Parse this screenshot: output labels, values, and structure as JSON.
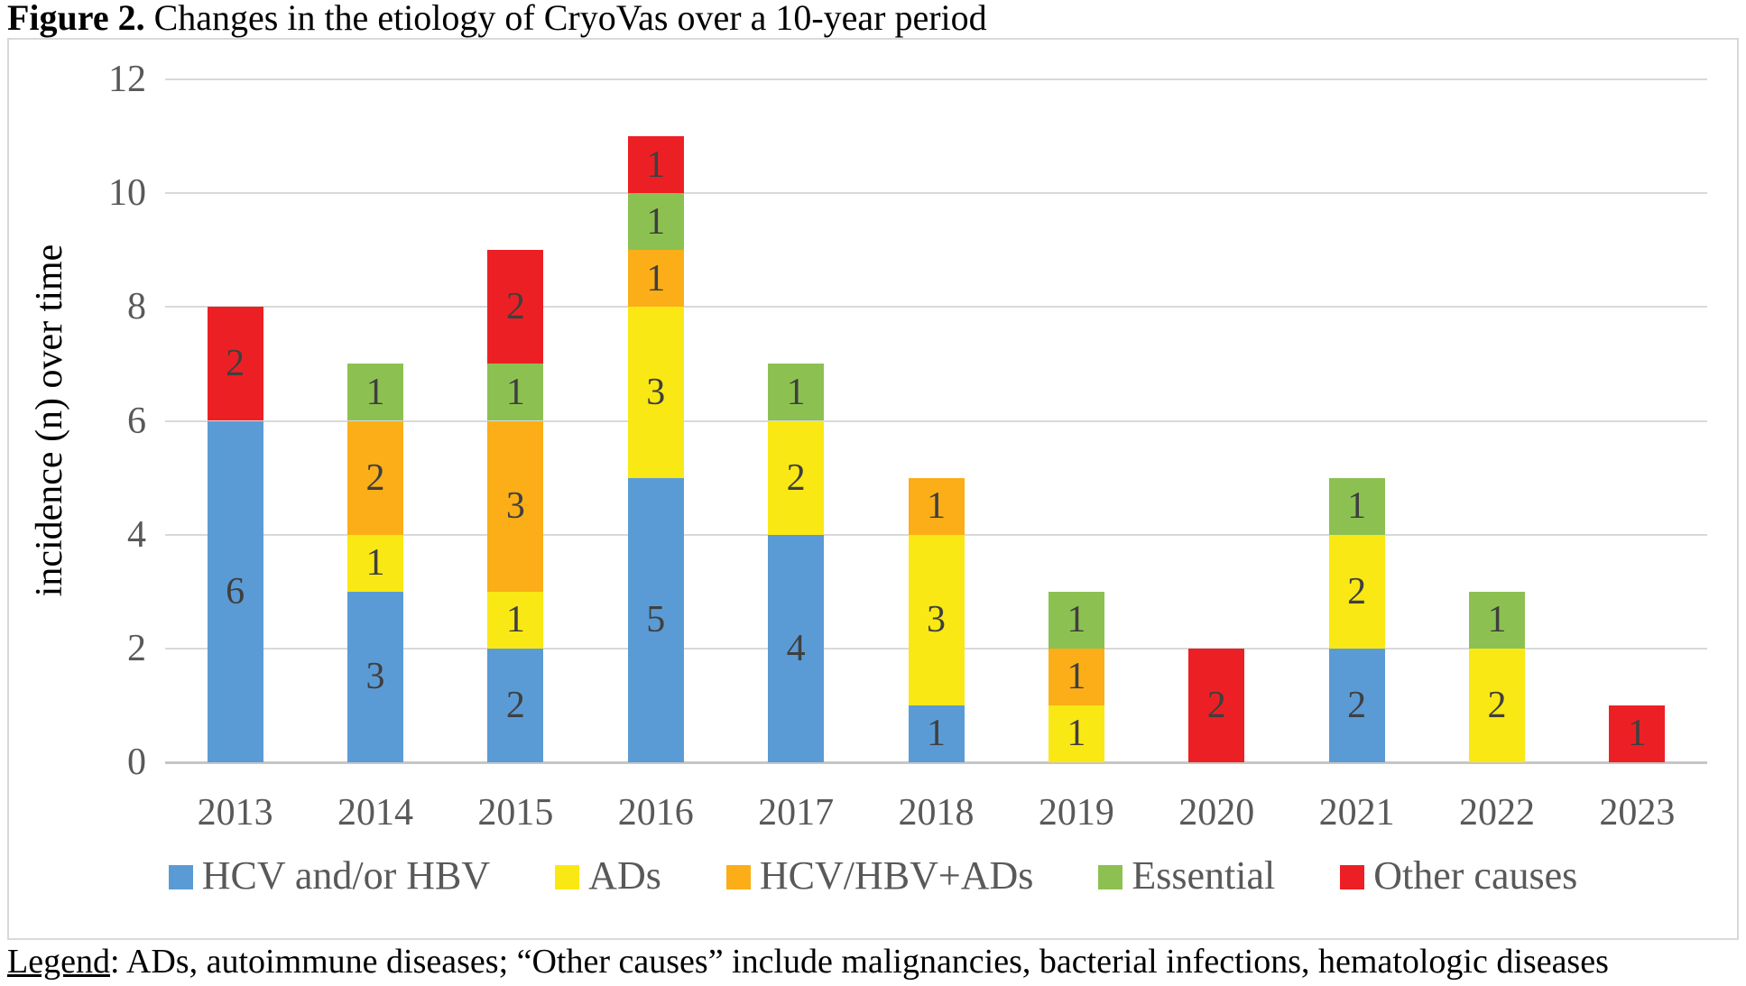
{
  "figure": {
    "label": "Figure 2.",
    "title": " Changes in the etiology of CryoVas over a 10-year period"
  },
  "caption": {
    "label": "Legend",
    "text": ": ADs, autoimmune diseases; “Other causes” include malignancies, bacterial infections, hematologic diseases"
  },
  "chart_data": {
    "type": "bar",
    "stacked": true,
    "title": "",
    "xlabel": "",
    "ylabel": "incidence (n) over time",
    "ylim": [
      0,
      12
    ],
    "ytick_step": 2,
    "yticks": [
      0,
      2,
      4,
      6,
      8,
      10,
      12
    ],
    "grid": true,
    "legend_position": "bottom",
    "categories": [
      "2013",
      "2014",
      "2015",
      "2016",
      "2017",
      "2018",
      "2019",
      "2020",
      "2021",
      "2022",
      "2023"
    ],
    "series": [
      {
        "name": "HCV and/or HBV",
        "color": "#5B9BD5",
        "values": [
          6,
          3,
          2,
          5,
          4,
          1,
          0,
          0,
          2,
          0,
          0
        ]
      },
      {
        "name": "ADs",
        "color": "#F9E814",
        "values": [
          0,
          1,
          1,
          3,
          2,
          3,
          1,
          0,
          2,
          2,
          0
        ]
      },
      {
        "name": "HCV/HBV+ADs",
        "color": "#FBAE17",
        "values": [
          0,
          2,
          3,
          1,
          0,
          1,
          1,
          0,
          0,
          0,
          0
        ]
      },
      {
        "name": "Essential",
        "color": "#8CC152",
        "values": [
          0,
          1,
          1,
          1,
          1,
          0,
          1,
          0,
          1,
          1,
          0
        ]
      },
      {
        "name": "Other causes",
        "color": "#EC2024",
        "values": [
          2,
          0,
          2,
          1,
          0,
          0,
          0,
          2,
          0,
          0,
          1
        ]
      }
    ],
    "totals": [
      8,
      7,
      9,
      11,
      7,
      5,
      3,
      2,
      5,
      3,
      1
    ]
  }
}
